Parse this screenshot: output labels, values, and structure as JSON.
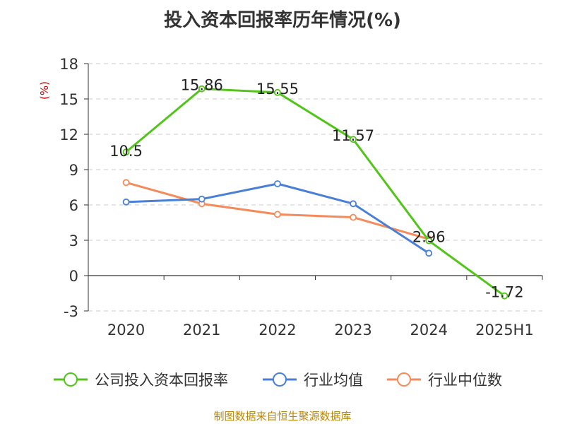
{
  "chart_data": {
    "type": "line",
    "title": "投入资本回报率历年情况(%)",
    "ylabel": "(%)",
    "xlabel": "",
    "categories": [
      "2020",
      "2021",
      "2022",
      "2023",
      "2024",
      "2025H1"
    ],
    "ylim": [
      -3,
      18
    ],
    "yticks": [
      -3,
      0,
      3,
      6,
      9,
      12,
      15,
      18
    ],
    "grid": true,
    "legend_position": "bottom",
    "series": [
      {
        "name": "公司投入资本回报率",
        "color": "#52c41a",
        "values": [
          10.5,
          15.86,
          15.55,
          11.57,
          2.96,
          -1.72
        ],
        "labels": [
          "10.5",
          "15.86",
          "15.55",
          "11.57",
          "2.96",
          "-1.72"
        ]
      },
      {
        "name": "行业均值",
        "color": "#4a7fd8",
        "values": [
          6.25,
          6.5,
          7.8,
          6.1,
          1.9,
          null
        ]
      },
      {
        "name": "行业中位数",
        "color": "#f58b5b",
        "values": [
          7.9,
          6.1,
          5.2,
          4.95,
          3.1,
          null
        ]
      }
    ]
  },
  "source": "制图数据来自恒生聚源数据库"
}
